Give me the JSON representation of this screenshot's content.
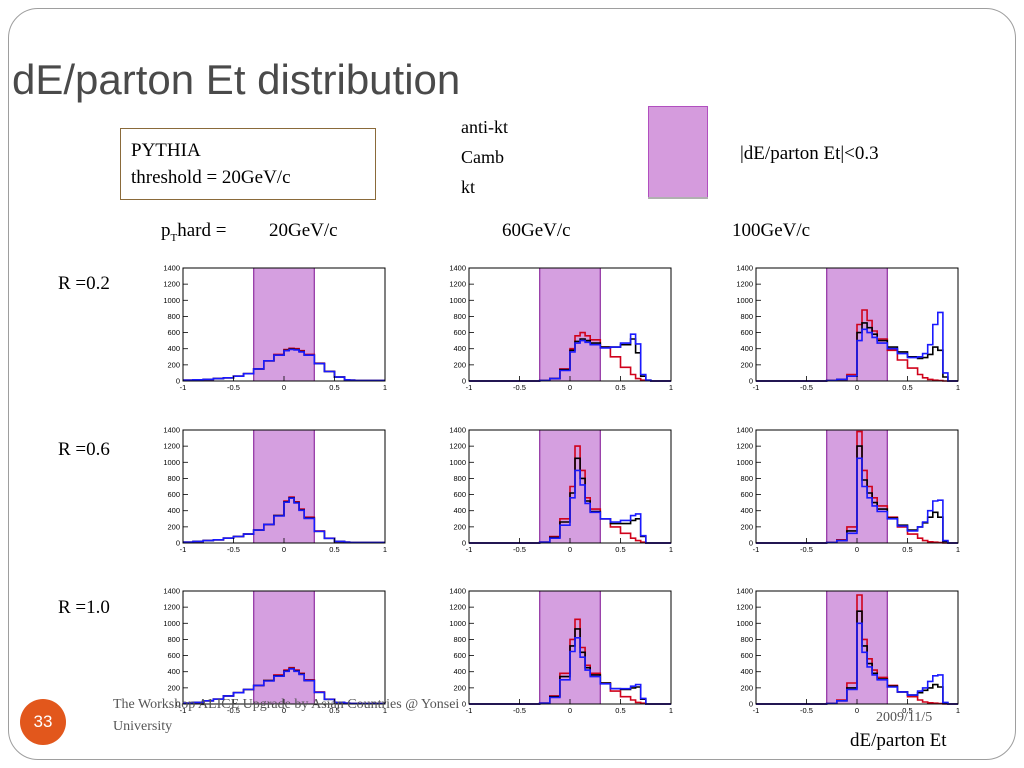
{
  "slide": {
    "title": "dE/parton Et distribution",
    "generator": "PYTHIA",
    "threshold": "threshold = 20GeV/c",
    "legend": [
      {
        "label": "anti-kt",
        "color": "#d0021b"
      },
      {
        "label": "Camb",
        "color": "#000000"
      },
      {
        "label": "kt",
        "color": "#1a1aff"
      }
    ],
    "cut_label": "|dE/parton Et|<0.3",
    "pt_prefix_main": "p",
    "pt_prefix_sub": "T",
    "pt_prefix_rest": "hard =",
    "col_labels": [
      "20GeV/c",
      "60GeV/c",
      "100GeV/c"
    ],
    "row_labels": [
      "R =0.2",
      "R =0.6",
      "R =1.0"
    ],
    "x_axis_title": "dE/parton Et",
    "page_number": "33",
    "footer_text": "The Workshop ALICE Upgrade by Asian Countries @ Yonsei University",
    "footer_date": "2009/11/5"
  },
  "chart_data": {
    "type": "line",
    "layout": "3x3 grid of histograms",
    "x": [
      -1.0,
      -0.9,
      -0.8,
      -0.7,
      -0.6,
      -0.5,
      -0.4,
      -0.3,
      -0.2,
      -0.1,
      0.0,
      0.05,
      0.1,
      0.15,
      0.2,
      0.3,
      0.4,
      0.5,
      0.6,
      0.65,
      0.7,
      0.75,
      0.8,
      0.85,
      0.9,
      1.0
    ],
    "xlim": [
      -1,
      1
    ],
    "ylim": [
      0,
      1400
    ],
    "xticks": [
      "-1",
      "-0.5",
      "0",
      "0.5",
      "1"
    ],
    "yticks": [
      "0",
      "200",
      "400",
      "600",
      "800",
      "1000",
      "1200",
      "1400"
    ],
    "highlight_band": [
      -0.3,
      0.3
    ],
    "band_color": "#c77fd6",
    "grid": false,
    "panels": [
      {
        "row": "R =0.2",
        "col": "20GeV/c",
        "series": [
          {
            "color": "#d0021b",
            "values": [
              10,
              15,
              20,
              30,
              40,
              60,
              90,
              150,
              250,
              330,
              390,
              405,
              400,
              375,
              330,
              220,
              120,
              50,
              15,
              10,
              5,
              5,
              5,
              5,
              5,
              5
            ]
          },
          {
            "color": "#000000",
            "values": [
              10,
              15,
              20,
              30,
              40,
              60,
              90,
              150,
              250,
              320,
              380,
              395,
              390,
              365,
              320,
              215,
              118,
              48,
              15,
              10,
              5,
              5,
              5,
              5,
              5,
              5
            ]
          },
          {
            "color": "#1a1aff",
            "values": [
              10,
              15,
              20,
              30,
              40,
              60,
              90,
              150,
              250,
              320,
              375,
              390,
              385,
              360,
              320,
              215,
              118,
              48,
              15,
              10,
              5,
              5,
              5,
              5,
              5,
              5
            ]
          }
        ]
      },
      {
        "row": "R =0.2",
        "col": "60GeV/c",
        "series": [
          {
            "color": "#d0021b",
            "values": [
              0,
              0,
              0,
              0,
              0,
              0,
              0,
              5,
              30,
              150,
              400,
              560,
              600,
              560,
              510,
              420,
              300,
              170,
              80,
              30,
              10,
              5,
              0,
              0,
              0,
              0
            ]
          },
          {
            "color": "#000000",
            "values": [
              0,
              0,
              0,
              0,
              0,
              0,
              0,
              5,
              30,
              140,
              380,
              490,
              520,
              500,
              470,
              420,
              420,
              450,
              520,
              350,
              60,
              10,
              0,
              0,
              0,
              0
            ]
          },
          {
            "color": "#1a1aff",
            "values": [
              0,
              0,
              0,
              0,
              0,
              0,
              0,
              5,
              30,
              130,
              360,
              470,
              500,
              480,
              450,
              410,
              420,
              470,
              580,
              460,
              80,
              10,
              0,
              0,
              0,
              0
            ]
          }
        ]
      },
      {
        "row": "R =0.2",
        "col": "100GeV/c",
        "series": [
          {
            "color": "#d0021b",
            "values": [
              0,
              0,
              0,
              0,
              0,
              0,
              0,
              5,
              20,
              80,
              700,
              880,
              750,
              620,
              520,
              380,
              260,
              160,
              80,
              40,
              20,
              10,
              5,
              0,
              0,
              0
            ]
          },
          {
            "color": "#000000",
            "values": [
              0,
              0,
              0,
              0,
              0,
              0,
              0,
              5,
              20,
              60,
              600,
              720,
              660,
              580,
              500,
              420,
              360,
              300,
              280,
              290,
              330,
              420,
              380,
              50,
              0,
              0
            ]
          },
          {
            "color": "#1a1aff",
            "values": [
              0,
              0,
              0,
              0,
              0,
              0,
              0,
              5,
              20,
              60,
              500,
              640,
              600,
              540,
              470,
              400,
              340,
              290,
              300,
              340,
              450,
              700,
              850,
              100,
              0,
              0
            ]
          }
        ]
      },
      {
        "row": "R =0.6",
        "col": "20GeV/c",
        "series": [
          {
            "color": "#d0021b",
            "values": [
              10,
              20,
              30,
              40,
              60,
              80,
              110,
              160,
              230,
              340,
              520,
              570,
              510,
              420,
              320,
              150,
              60,
              20,
              10,
              5,
              5,
              5,
              5,
              5,
              5,
              5
            ]
          },
          {
            "color": "#000000",
            "values": [
              10,
              20,
              30,
              40,
              60,
              80,
              110,
              160,
              230,
              340,
              510,
              560,
              500,
              410,
              310,
              145,
              58,
              20,
              10,
              5,
              5,
              5,
              5,
              5,
              5,
              5
            ]
          },
          {
            "color": "#1a1aff",
            "values": [
              10,
              20,
              30,
              40,
              60,
              80,
              110,
              160,
              230,
              335,
              505,
              555,
              495,
              405,
              305,
              145,
              58,
              20,
              10,
              5,
              5,
              5,
              5,
              5,
              5,
              5
            ]
          }
        ]
      },
      {
        "row": "R =0.6",
        "col": "60GeV/c",
        "series": [
          {
            "color": "#d0021b",
            "values": [
              0,
              0,
              0,
              0,
              0,
              0,
              0,
              10,
              80,
              300,
              700,
              1200,
              900,
              560,
              420,
              300,
              200,
              120,
              60,
              30,
              10,
              0,
              0,
              0,
              0,
              0
            ]
          },
          {
            "color": "#000000",
            "values": [
              0,
              0,
              0,
              0,
              0,
              0,
              0,
              10,
              70,
              260,
              620,
              1050,
              800,
              520,
              390,
              300,
              240,
              240,
              280,
              300,
              80,
              0,
              0,
              0,
              0,
              0
            ]
          },
          {
            "color": "#1a1aff",
            "values": [
              0,
              0,
              0,
              0,
              0,
              0,
              0,
              10,
              60,
              220,
              560,
              900,
              720,
              490,
              380,
              300,
              260,
              280,
              340,
              360,
              90,
              0,
              0,
              0,
              0,
              0
            ]
          }
        ]
      },
      {
        "row": "R =0.6",
        "col": "100GeV/c",
        "series": [
          {
            "color": "#d0021b",
            "values": [
              0,
              0,
              0,
              0,
              0,
              0,
              0,
              5,
              40,
              200,
              1380,
              900,
              700,
              560,
              460,
              320,
              200,
              110,
              60,
              30,
              15,
              10,
              5,
              0,
              0,
              0
            ]
          },
          {
            "color": "#000000",
            "values": [
              0,
              0,
              0,
              0,
              0,
              0,
              0,
              5,
              30,
              150,
              1200,
              780,
              620,
              500,
              420,
              310,
              220,
              160,
              200,
              250,
              320,
              380,
              320,
              20,
              0,
              0
            ]
          },
          {
            "color": "#1a1aff",
            "values": [
              0,
              0,
              0,
              0,
              0,
              0,
              0,
              5,
              30,
              120,
              1050,
              700,
              560,
              460,
              390,
              300,
              210,
              150,
              200,
              260,
              400,
              520,
              530,
              30,
              0,
              0
            ]
          }
        ]
      },
      {
        "row": "R =1.0",
        "col": "20GeV/c",
        "series": [
          {
            "color": "#d0021b",
            "values": [
              10,
              20,
              40,
              60,
              100,
              140,
              180,
              230,
              290,
              360,
              420,
              450,
              420,
              380,
              300,
              150,
              60,
              20,
              10,
              5,
              5,
              5,
              5,
              5,
              5,
              5
            ]
          },
          {
            "color": "#000000",
            "values": [
              10,
              20,
              40,
              60,
              100,
              140,
              180,
              230,
              290,
              350,
              410,
              440,
              410,
              370,
              290,
              145,
              58,
              20,
              10,
              5,
              5,
              5,
              5,
              5,
              5,
              5
            ]
          },
          {
            "color": "#1a1aff",
            "values": [
              10,
              20,
              40,
              60,
              100,
              140,
              180,
              230,
              285,
              345,
              405,
              435,
              405,
              365,
              290,
              145,
              58,
              20,
              10,
              5,
              5,
              5,
              5,
              5,
              5,
              5
            ]
          }
        ]
      },
      {
        "row": "R =1.0",
        "col": "60GeV/c",
        "series": [
          {
            "color": "#d0021b",
            "values": [
              0,
              0,
              0,
              0,
              0,
              0,
              0,
              10,
              100,
              380,
              800,
              1050,
              700,
              480,
              380,
              260,
              160,
              90,
              50,
              20,
              10,
              0,
              0,
              0,
              0,
              0
            ]
          },
          {
            "color": "#000000",
            "values": [
              0,
              0,
              0,
              0,
              0,
              0,
              0,
              10,
              90,
              340,
              720,
              930,
              640,
              450,
              360,
              260,
              190,
              180,
              200,
              210,
              60,
              0,
              0,
              0,
              0,
              0
            ]
          },
          {
            "color": "#1a1aff",
            "values": [
              0,
              0,
              0,
              0,
              0,
              0,
              0,
              10,
              80,
              300,
              650,
              820,
              580,
              420,
              340,
              250,
              190,
              190,
              220,
              240,
              70,
              0,
              0,
              0,
              0,
              0
            ]
          }
        ]
      },
      {
        "row": "R =1.0",
        "col": "100GeV/c",
        "series": [
          {
            "color": "#d0021b",
            "values": [
              0,
              0,
              0,
              0,
              0,
              0,
              0,
              5,
              50,
              260,
              1350,
              800,
              560,
              420,
              330,
              230,
              150,
              90,
              50,
              25,
              15,
              10,
              5,
              0,
              0,
              0
            ]
          },
          {
            "color": "#000000",
            "values": [
              0,
              0,
              0,
              0,
              0,
              0,
              0,
              5,
              40,
              200,
              1150,
              720,
              500,
              380,
              310,
              220,
              150,
              110,
              140,
              170,
              200,
              240,
              210,
              10,
              0,
              0
            ]
          },
          {
            "color": "#1a1aff",
            "values": [
              0,
              0,
              0,
              0,
              0,
              0,
              0,
              5,
              40,
              180,
              1000,
              640,
              460,
              360,
              300,
              210,
              150,
              110,
              160,
              200,
              280,
              350,
              360,
              20,
              0,
              0
            ]
          }
        ]
      }
    ]
  }
}
